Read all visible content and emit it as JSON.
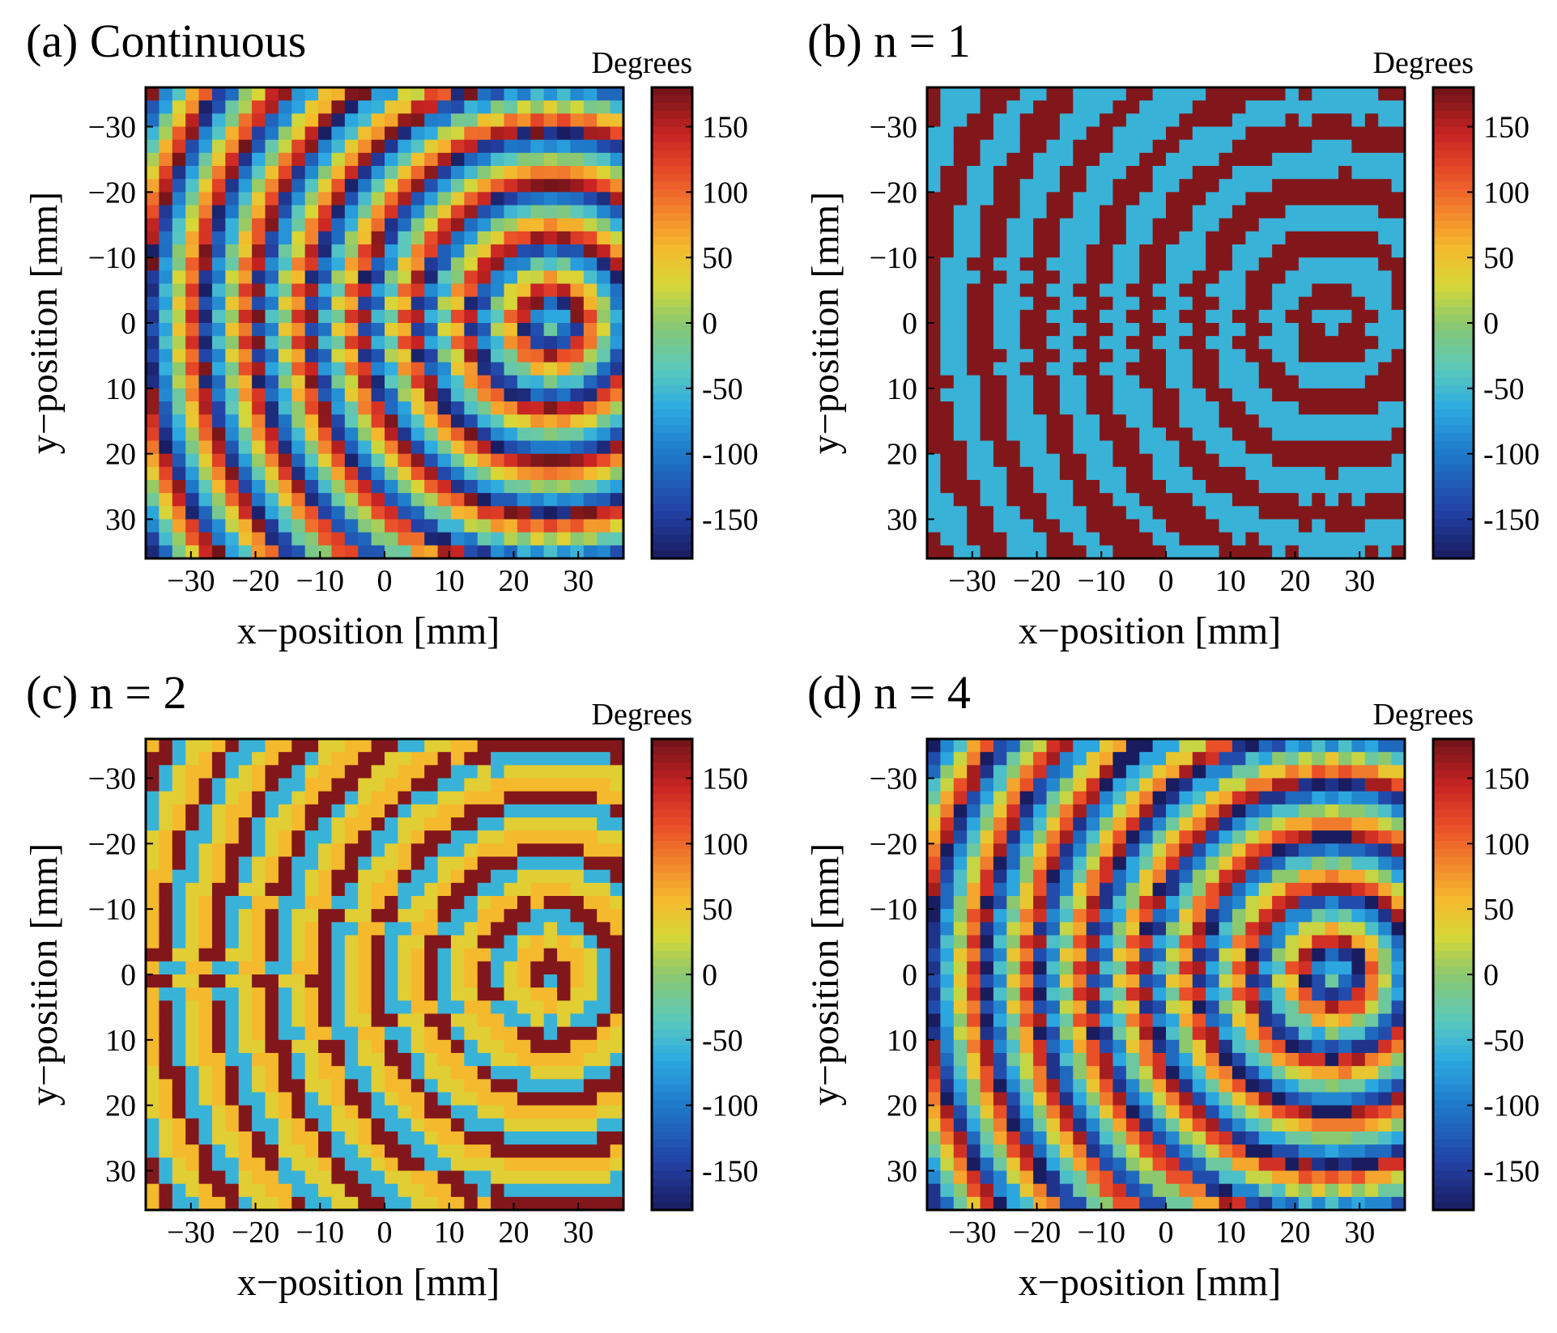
{
  "figure": {
    "type": "heatmap-panels"
  },
  "chart_data": [
    {
      "type": "heatmap",
      "panel_label": "(a) Continuous",
      "quantization": "continuous",
      "levels": null,
      "xlabel": "x−position [mm]",
      "ylabel": "y−position [mm]",
      "xlim": [
        -37,
        37
      ],
      "ylim": [
        -36,
        36
      ],
      "xticks": [
        -30,
        -20,
        -10,
        0,
        10,
        20,
        30
      ],
      "xtick_labels": [
        "−30",
        "−20",
        "−10",
        "0",
        "10",
        "20",
        "30"
      ],
      "yticks": [
        -30,
        -20,
        -10,
        0,
        10,
        20,
        30
      ],
      "ytick_labels": [
        "−30",
        "−20",
        "−10",
        "0",
        "10",
        "20",
        "30"
      ],
      "colorbar": {
        "title": "Degrees",
        "range": [
          -180,
          180
        ],
        "ticks": [
          150,
          100,
          50,
          0,
          -50,
          -100,
          -150
        ],
        "tick_labels": [
          "150",
          "100",
          "50",
          "0",
          "-50",
          "-100",
          "-150"
        ]
      },
      "grid_cells": [
        36,
        36
      ],
      "phase_field": {
        "focus_mm": [
          26,
          0
        ],
        "hyperbolic_k": 0.75,
        "checker_period_mm": [
          4.2,
          4.2
        ]
      }
    },
    {
      "type": "heatmap",
      "panel_label": "(b)  n = 1",
      "quantization": "binary",
      "levels": [
        -1.0,
        3.0
      ],
      "xlabel": "x−position [mm]",
      "ylabel": "y−position [mm]",
      "xlim": [
        -37,
        37
      ],
      "ylim": [
        -36,
        36
      ],
      "xticks": [
        -30,
        -20,
        -10,
        0,
        10,
        20,
        30
      ],
      "xtick_labels": [
        "−30",
        "−20",
        "−10",
        "0",
        "10",
        "20",
        "30"
      ],
      "yticks": [
        -30,
        -20,
        -10,
        0,
        10,
        20,
        30
      ],
      "ytick_labels": [
        "−30",
        "−20",
        "−10",
        "0",
        "10",
        "20",
        "30"
      ],
      "colorbar": {
        "title": "Degrees",
        "range": [
          -180,
          180
        ],
        "ticks": [
          150,
          100,
          50,
          0,
          -50,
          -100,
          -150
        ],
        "tick_labels": [
          "150",
          "100",
          "50",
          "0",
          "-50",
          "-100",
          "-150"
        ]
      },
      "grid_cells": [
        36,
        36
      ],
      "phase_field": {
        "focus_mm": [
          26,
          0
        ],
        "hyperbolic_k": 0.75,
        "checker_period_mm": [
          4.2,
          4.2
        ]
      }
    },
    {
      "type": "heatmap",
      "panel_label": "(c)  n = 2",
      "quantization": "four-level",
      "levels": [
        -1.0,
        0.65,
        1.0,
        3.0
      ],
      "xlabel": "x−position [mm]",
      "ylabel": "y−position [mm]",
      "xlim": [
        -37,
        37
      ],
      "ylim": [
        -36,
        36
      ],
      "xticks": [
        -30,
        -20,
        -10,
        0,
        10,
        20,
        30
      ],
      "xtick_labels": [
        "−30",
        "−20",
        "−10",
        "0",
        "10",
        "20",
        "30"
      ],
      "yticks": [
        -30,
        -20,
        -10,
        0,
        10,
        20,
        30
      ],
      "ytick_labels": [
        "−30",
        "−20",
        "−10",
        "0",
        "10",
        "20",
        "30"
      ],
      "colorbar": {
        "title": "Degrees",
        "range": [
          -180,
          180
        ],
        "ticks": [
          150,
          100,
          50,
          0,
          -50,
          -100,
          -150
        ],
        "tick_labels": [
          "150",
          "100",
          "50",
          "0",
          "-50",
          "-100",
          "-150"
        ]
      },
      "grid_cells": [
        36,
        36
      ],
      "phase_field": {
        "focus_mm": [
          26,
          0
        ],
        "hyperbolic_k": 0.75,
        "checker_period_mm": [
          4.2,
          4.2
        ]
      }
    },
    {
      "type": "heatmap",
      "panel_label": "(d)  n = 4",
      "quantization": "sixteen-level",
      "levels": 16,
      "xlabel": "x−position [mm]",
      "ylabel": "y−position [mm]",
      "xlim": [
        -37,
        37
      ],
      "ylim": [
        -36,
        36
      ],
      "xticks": [
        -30,
        -20,
        -10,
        0,
        10,
        20,
        30
      ],
      "xtick_labels": [
        "−30",
        "−20",
        "−10",
        "0",
        "10",
        "20",
        "30"
      ],
      "yticks": [
        -30,
        -20,
        -10,
        0,
        10,
        20,
        30
      ],
      "ytick_labels": [
        "−30",
        "−20",
        "−10",
        "0",
        "10",
        "20",
        "30"
      ],
      "colorbar": {
        "title": "Degrees",
        "range": [
          -180,
          180
        ],
        "ticks": [
          150,
          100,
          50,
          0,
          -50,
          -100,
          -150
        ],
        "tick_labels": [
          "150",
          "100",
          "50",
          "0",
          "-50",
          "-100",
          "-150"
        ]
      },
      "grid_cells": [
        36,
        36
      ],
      "phase_field": {
        "focus_mm": [
          26,
          0
        ],
        "hyperbolic_k": 0.75,
        "checker_period_mm": [
          4.2,
          4.2
        ]
      }
    }
  ]
}
